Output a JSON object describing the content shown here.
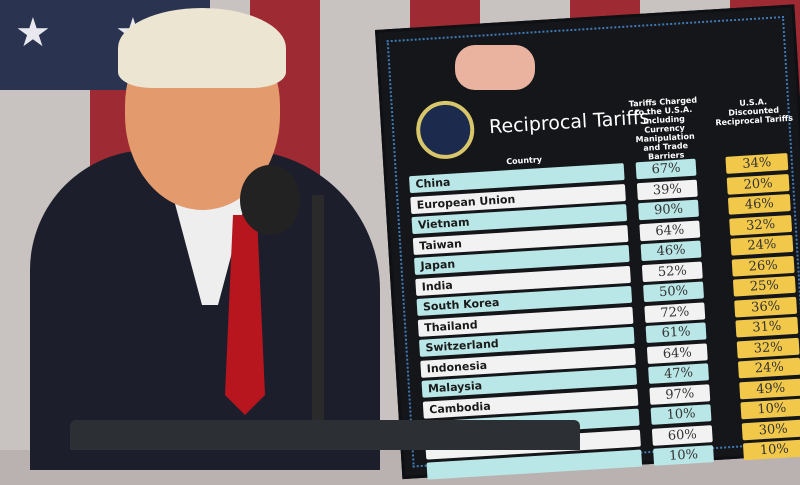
{
  "board": {
    "title": "Reciprocal Tariffs",
    "col_country": "Country",
    "col_charged": "Tariffs Charged to the U.S.A. Including Currency Manipulation and Trade Barriers",
    "col_discounted": "U.S.A. Discounted Reciprocal Tariffs",
    "rows": [
      {
        "country": "China",
        "charged": "67%",
        "discounted": "34%"
      },
      {
        "country": "European Union",
        "charged": "39%",
        "discounted": "20%"
      },
      {
        "country": "Vietnam",
        "charged": "90%",
        "discounted": "46%"
      },
      {
        "country": "Taiwan",
        "charged": "64%",
        "discounted": "32%"
      },
      {
        "country": "Japan",
        "charged": "46%",
        "discounted": "24%"
      },
      {
        "country": "India",
        "charged": "52%",
        "discounted": "26%"
      },
      {
        "country": "South Korea",
        "charged": "50%",
        "discounted": "25%"
      },
      {
        "country": "Thailand",
        "charged": "72%",
        "discounted": "36%"
      },
      {
        "country": "Switzerland",
        "charged": "61%",
        "discounted": "31%"
      },
      {
        "country": "Indonesia",
        "charged": "64%",
        "discounted": "32%"
      },
      {
        "country": "Malaysia",
        "charged": "47%",
        "discounted": "24%"
      },
      {
        "country": "Cambodia",
        "charged": "97%",
        "discounted": "49%"
      },
      {
        "country": "",
        "charged": "10%",
        "discounted": "10%"
      },
      {
        "country": "",
        "charged": "60%",
        "discounted": "30%"
      },
      {
        "country": "",
        "charged": "10%",
        "discounted": "10%"
      }
    ]
  },
  "colors": {
    "teal_row": "#b9e6e6",
    "yellow_cell": "#f2c84b",
    "board_bg": "#14161a"
  }
}
